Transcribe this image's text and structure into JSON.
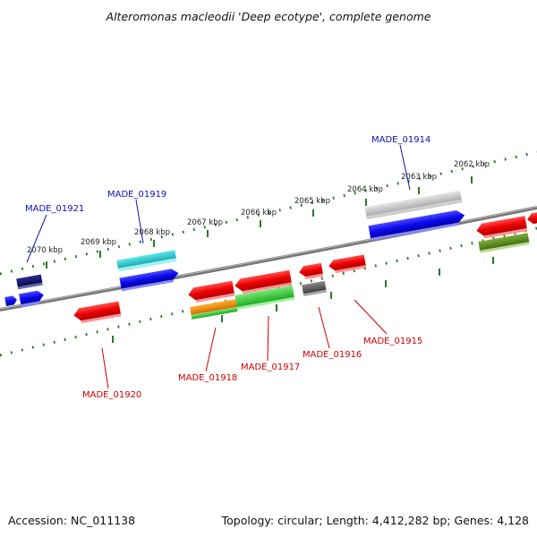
{
  "title": "Alteromonas macleodii 'Deep ecotype', complete genome",
  "footer": {
    "accession": "Accession: NC_011138",
    "summary": "Topology: circular; Length: 4,412,282 bp; Genes: 4,128"
  },
  "scale_labels": [
    "2070 kbp",
    "2069 kbp",
    "2068 kbp",
    "2067 kbp",
    "2066 kbp",
    "2065 kbp",
    "2064 kbp",
    "2063 kbp",
    "2062 kbp"
  ],
  "gene_labels": {
    "made_01921": "MADE_01921",
    "made_01919": "MADE_01919",
    "made_01914": "MADE_01914",
    "made_01920": "MADE_01920",
    "made_01918": "MADE_01918",
    "made_01917": "MADE_01917",
    "made_01916": "MADE_01916",
    "made_01915": "MADE_01915"
  },
  "colors": {
    "forward_label": "#1010b0",
    "reverse_label": "#cc0000",
    "backbone": "#777777",
    "scale_ticks": "#2a7a2a"
  }
}
